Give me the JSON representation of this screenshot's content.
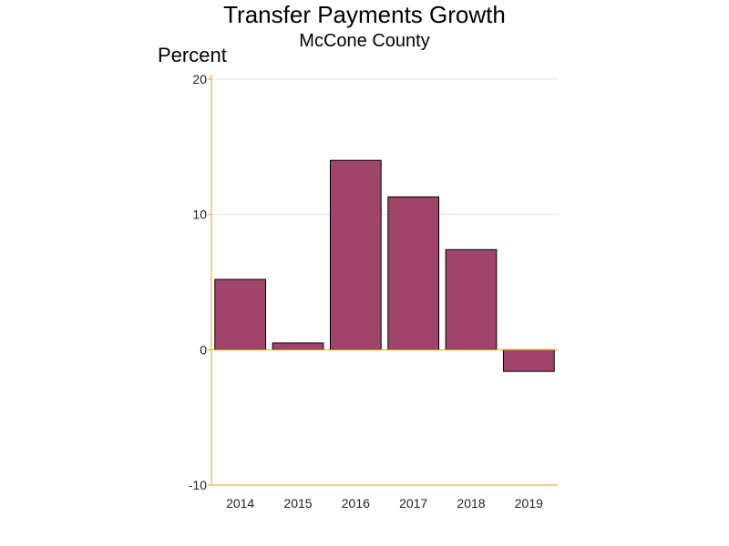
{
  "chart_data": {
    "type": "bar",
    "title": "Transfer Payments Growth",
    "subtitle": "McCone County",
    "ylabel": "Percent",
    "xlabel": "",
    "categories": [
      "2014",
      "2015",
      "2016",
      "2017",
      "2018",
      "2019"
    ],
    "values": [
      5.2,
      0.5,
      14.0,
      11.3,
      7.4,
      -1.6
    ],
    "ylim": [
      -10,
      20
    ],
    "yticks": [
      "-10",
      "0",
      "10",
      "20"
    ],
    "grid": true,
    "legend": "none"
  },
  "colors": {
    "bar_fill": "#a04469",
    "bar_stroke": "#000000",
    "axis": "#e8a317",
    "grid": "#e3e3e3"
  }
}
